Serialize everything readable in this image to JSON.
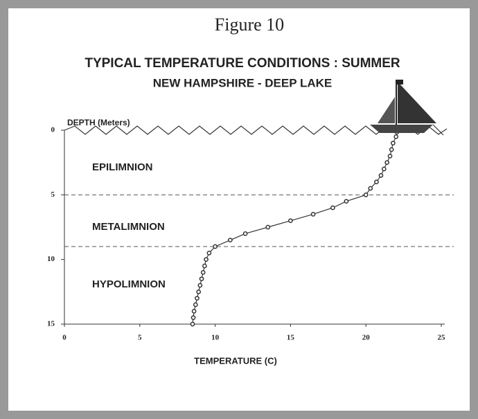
{
  "chart_data": {
    "type": "line",
    "figure_label": "Figure 10",
    "title": "TYPICAL TEMPERATURE CONDITIONS : SUMMER",
    "subtitle": "NEW HAMPSHIRE - DEEP LAKE",
    "y_label": "DEPTH (Meters)",
    "x_label": "TEMPERATURE (C)",
    "layers": [
      "EPILIMNION",
      "METALIMNION",
      "HYPOLIMNION"
    ],
    "layer_boundaries": [
      5,
      9
    ],
    "x": [
      22,
      21.8,
      21.7,
      21.6,
      21.4,
      21.2,
      21.0,
      20.7,
      20.3,
      20.0,
      18.7,
      17.8,
      16.5,
      15.0,
      13.5,
      12.0,
      11.0,
      10.0,
      9.6,
      9.4,
      9.3,
      9.2,
      9.1,
      9.0,
      8.9,
      8.8,
      8.7,
      8.6,
      8.55,
      8.5
    ],
    "values": [
      0.5,
      1,
      1.5,
      2,
      2.5,
      3,
      3.5,
      4,
      4.5,
      5,
      5.5,
      6,
      6.5,
      7,
      7.5,
      8,
      8.5,
      9,
      9.5,
      10,
      10.5,
      11,
      11.5,
      12,
      12.5,
      13,
      13.5,
      14,
      14.5,
      15
    ],
    "color": "#333333",
    "xlim": [
      0,
      25
    ],
    "xticks": [
      0,
      5,
      10,
      15,
      20,
      25
    ],
    "ylim": [
      15,
      0
    ],
    "yticks": [
      0,
      5,
      10,
      15
    ]
  }
}
